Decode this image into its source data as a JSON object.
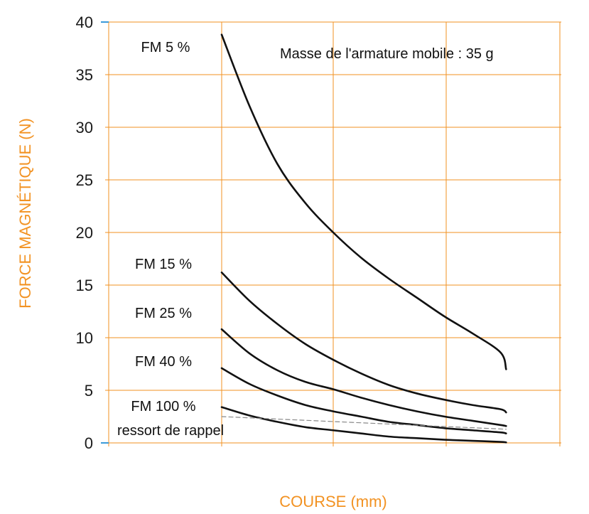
{
  "chart_data": {
    "type": "line",
    "title": "",
    "xlabel": "COURSE (mm)",
    "ylabel": "FORCE MAGNÉTIQUE (N)",
    "ylim": [
      0,
      40
    ],
    "yticks": [
      "0",
      "5",
      "10",
      "15",
      "20",
      "25",
      "30",
      "35",
      "40"
    ],
    "grid": true,
    "annotation": "Masse de l'armature mobile : 35 g",
    "series": [
      {
        "name": "FM 5 %",
        "points": [
          [
            1,
            38.8
          ],
          [
            1.25,
            32
          ],
          [
            1.5,
            26.5
          ],
          [
            1.75,
            22.8
          ],
          [
            2,
            20
          ],
          [
            2.25,
            17.6
          ],
          [
            2.5,
            15.6
          ],
          [
            2.75,
            13.8
          ],
          [
            3,
            12.0
          ],
          [
            3.25,
            10.4
          ],
          [
            3.5,
            8.6
          ],
          [
            3.55,
            7.0
          ]
        ]
      },
      {
        "name": "FM 15 %",
        "points": [
          [
            1,
            16.2
          ],
          [
            1.25,
            13.5
          ],
          [
            1.5,
            11.3
          ],
          [
            1.75,
            9.4
          ],
          [
            2,
            7.9
          ],
          [
            2.25,
            6.6
          ],
          [
            2.5,
            5.5
          ],
          [
            2.75,
            4.7
          ],
          [
            3,
            4.1
          ],
          [
            3.25,
            3.6
          ],
          [
            3.5,
            3.2
          ],
          [
            3.55,
            2.9
          ]
        ]
      },
      {
        "name": "FM 25 %",
        "points": [
          [
            1,
            10.8
          ],
          [
            1.25,
            8.5
          ],
          [
            1.5,
            6.9
          ],
          [
            1.75,
            5.8
          ],
          [
            2,
            5.1
          ],
          [
            2.25,
            4.3
          ],
          [
            2.5,
            3.6
          ],
          [
            2.75,
            3.0
          ],
          [
            3,
            2.5
          ],
          [
            3.25,
            2.1
          ],
          [
            3.5,
            1.7
          ],
          [
            3.55,
            1.6
          ]
        ]
      },
      {
        "name": "FM 40 %",
        "points": [
          [
            1,
            7.1
          ],
          [
            1.25,
            5.6
          ],
          [
            1.5,
            4.5
          ],
          [
            1.75,
            3.6
          ],
          [
            2,
            3.0
          ],
          [
            2.25,
            2.5
          ],
          [
            2.5,
            2.0
          ],
          [
            2.75,
            1.7
          ],
          [
            3,
            1.4
          ],
          [
            3.25,
            1.2
          ],
          [
            3.5,
            1.0
          ],
          [
            3.55,
            0.9
          ]
        ]
      },
      {
        "name": "FM 100 %",
        "points": [
          [
            1,
            3.4
          ],
          [
            1.25,
            2.6
          ],
          [
            1.5,
            2.0
          ],
          [
            1.75,
            1.5
          ],
          [
            2,
            1.2
          ],
          [
            2.25,
            0.9
          ],
          [
            2.5,
            0.6
          ],
          [
            2.75,
            0.45
          ],
          [
            3,
            0.3
          ],
          [
            3.25,
            0.2
          ],
          [
            3.5,
            0.1
          ],
          [
            3.55,
            0.05
          ]
        ]
      },
      {
        "name": "ressort de rappel",
        "style": "dashed",
        "points": [
          [
            1,
            2.5
          ],
          [
            3.55,
            1.3
          ]
        ]
      }
    ]
  },
  "colors": {
    "axis_title": "#f29222",
    "grid": "#f29222",
    "zero_ticks": "#3a9ad9",
    "curve": "#111111",
    "spring": "#888888"
  }
}
